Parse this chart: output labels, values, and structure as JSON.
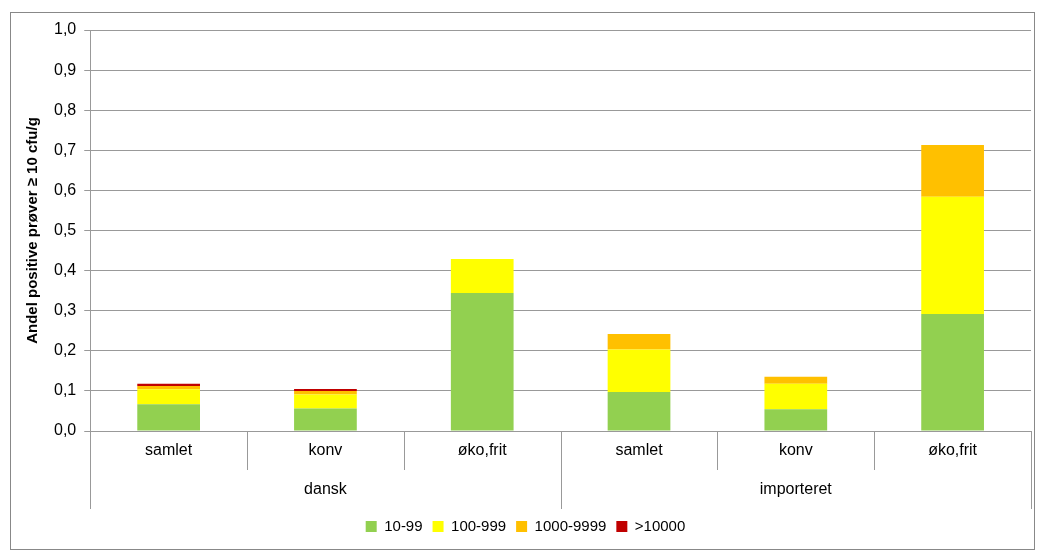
{
  "chart_data": {
    "type": "bar",
    "stacked": true,
    "ylabel": "Andel positive prøver ≥ 10 cfu/g",
    "categories": [
      "samlet",
      "konv",
      "øko,frit",
      "samlet",
      "konv",
      "øko,frit"
    ],
    "annotations": [
      "dansk",
      "importeret"
    ],
    "series": [
      {
        "name": "10-99",
        "color": "#92d050",
        "values": [
          0.067,
          0.056,
          0.344,
          0.097,
          0.054,
          0.292
        ]
      },
      {
        "name": "100-999",
        "color": "#ffff00",
        "values": [
          0.037,
          0.035,
          0.085,
          0.106,
          0.064,
          0.292
        ]
      },
      {
        "name": "1000-9999",
        "color": "#ffc000",
        "values": [
          0.008,
          0.009,
          null,
          0.039,
          0.017,
          0.129
        ]
      },
      {
        "name": ">10000",
        "color": "#c00000",
        "values": [
          0.006,
          0.005,
          null,
          null,
          null,
          null
        ]
      }
    ],
    "ylim": [
      0,
      1
    ],
    "yticks": [
      {
        "value": 0,
        "label": "0,0"
      },
      {
        "value": 0.1,
        "label": "0,1"
      },
      {
        "value": 0.2,
        "label": "0,2"
      },
      {
        "value": 0.3,
        "label": "0,3"
      },
      {
        "value": 0.4,
        "label": "0,4"
      },
      {
        "value": 0.5,
        "label": "0,5"
      },
      {
        "value": 0.6,
        "label": "0,6"
      },
      {
        "value": 0.7,
        "label": "0,7"
      },
      {
        "value": 0.8,
        "label": "0,8"
      },
      {
        "value": 0.9,
        "label": "0,9"
      },
      {
        "value": 1,
        "label": "1,0"
      }
    ],
    "grid": "y",
    "legend": "bottom"
  }
}
